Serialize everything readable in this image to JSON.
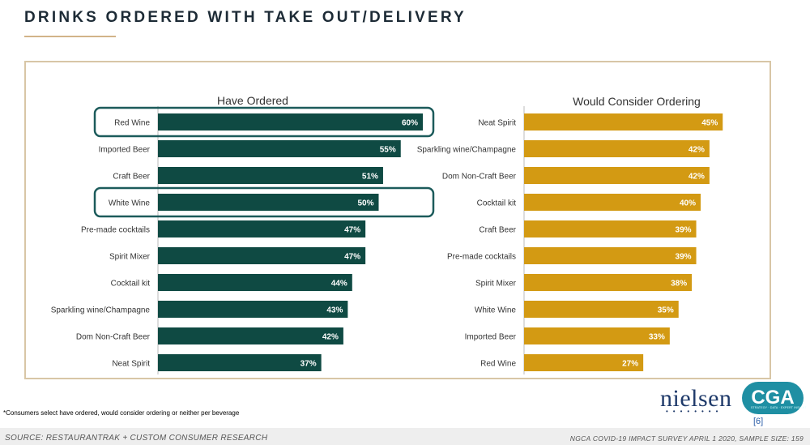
{
  "page": {
    "title": "DRINKS ORDERED WITH TAKE OUT/DELIVERY",
    "footnote": "*Consumers select have ordered, would consider ordering or neither per beverage",
    "source": "SOURCE: RESTAURANTRAK + CUSTOM CONSUMER RESEARCH",
    "survey": "NGCA COVID-19 IMPACT SURVEY APRIL 1 2020, SAMPLE SIZE: 159",
    "page_number": "[6]",
    "logos": {
      "nielsen": "nielsen",
      "cga": "CGA",
      "cga_tagline": "STRATEGY · DATA · EXPERT INSIGHT"
    }
  },
  "colors": {
    "have_ordered": "#0f4a43",
    "would_consider": "#d39a13",
    "highlight": "#1c5b5b"
  },
  "chart_data": [
    {
      "type": "bar",
      "orientation": "horizontal",
      "title": "Have Ordered",
      "categories": [
        "Red Wine",
        "Imported Beer",
        "Craft Beer",
        "White Wine",
        "Pre-made cocktails",
        "Spirit Mixer",
        "Cocktail kit",
        "Sparkling wine/Champagne",
        "Dom Non-Craft Beer",
        "Neat Spirit"
      ],
      "values": [
        60,
        55,
        51,
        50,
        47,
        47,
        44,
        43,
        42,
        37
      ],
      "labels": [
        "60%",
        "55%",
        "51%",
        "50%",
        "47%",
        "47%",
        "44%",
        "43%",
        "42%",
        "37%"
      ],
      "highlighted": [
        "Red Wine",
        "White Wine"
      ],
      "unit": "%",
      "xlim": [
        0,
        70
      ]
    },
    {
      "type": "bar",
      "orientation": "horizontal",
      "title": "Would Consider Ordering",
      "categories": [
        "Neat Spirit",
        "Sparkling wine/Champagne",
        "Dom Non-Craft Beer",
        "Cocktail kit",
        "Craft Beer",
        "Pre-made cocktails",
        "Spirit Mixer",
        "White Wine",
        "Imported Beer",
        "Red Wine"
      ],
      "values": [
        45,
        42,
        42,
        40,
        39,
        39,
        38,
        35,
        33,
        27
      ],
      "labels": [
        "45%",
        "42%",
        "42%",
        "40%",
        "39%",
        "39%",
        "38%",
        "35%",
        "33%",
        "27%"
      ],
      "unit": "%",
      "xlim": [
        0,
        70
      ]
    }
  ]
}
